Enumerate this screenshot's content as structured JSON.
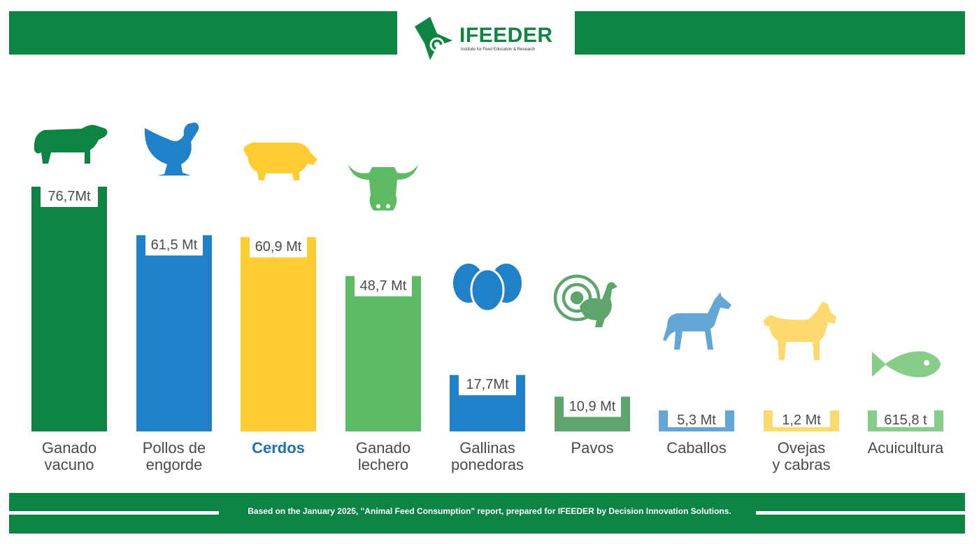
{
  "header": {
    "brand_name": "IFEEDER",
    "brand_tagline": "Institute for Feed Education & Research",
    "brand_color": "#0e8442"
  },
  "footer": {
    "note": "Based on the January 2025, \"Animal Feed Consumption\" report, prepared for IFEEDER by Decision Innovation Solutions."
  },
  "chart_data": {
    "type": "bar",
    "title": "",
    "xlabel": "",
    "ylabel": "",
    "categories": [
      "Ganado vacuno",
      "Pollos de engorde",
      "Cerdos",
      "Ganado lechero",
      "Gallinas ponedoras",
      "Pavos",
      "Caballos",
      "Ovejas y cabras",
      "Acuicultura"
    ],
    "category_lines": [
      [
        "Ganado",
        "vacuno"
      ],
      [
        "Pollos de",
        "engorde"
      ],
      [
        "Cerdos"
      ],
      [
        "Ganado",
        "lechero"
      ],
      [
        "Gallinas",
        "ponedoras"
      ],
      [
        "Pavos"
      ],
      [
        "Caballos"
      ],
      [
        "Ovejas",
        "y cabras"
      ],
      [
        "Acuicultura"
      ]
    ],
    "values": [
      76.7,
      61.5,
      60.9,
      48.7,
      17.7,
      10.9,
      5.3,
      1.2,
      0.0006158
    ],
    "unit": "Mt",
    "value_labels": [
      "76,7Mt",
      "61,5 Mt",
      "60,9 Mt",
      "48,7 Mt",
      "17,7Mt",
      "10,9 Mt",
      "5,3 Mt",
      "1,2 Mt",
      "615,8 t"
    ],
    "colors": [
      "#0e8442",
      "#2181c8",
      "#fecd34",
      "#5ebb63",
      "#2181c8",
      "#5ea46d",
      "#64a7d6",
      "#fed96e",
      "#87cd89"
    ],
    "icons": [
      "cow-icon",
      "chicken-icon",
      "pig-icon",
      "dairy-cow-icon",
      "eggs-icon",
      "turkey-icon",
      "horse-icon",
      "goat-icon",
      "fish-icon"
    ],
    "highlight_index": 2,
    "highlight_color": "#1f6fb5",
    "label_color": "#4a4a4a"
  }
}
